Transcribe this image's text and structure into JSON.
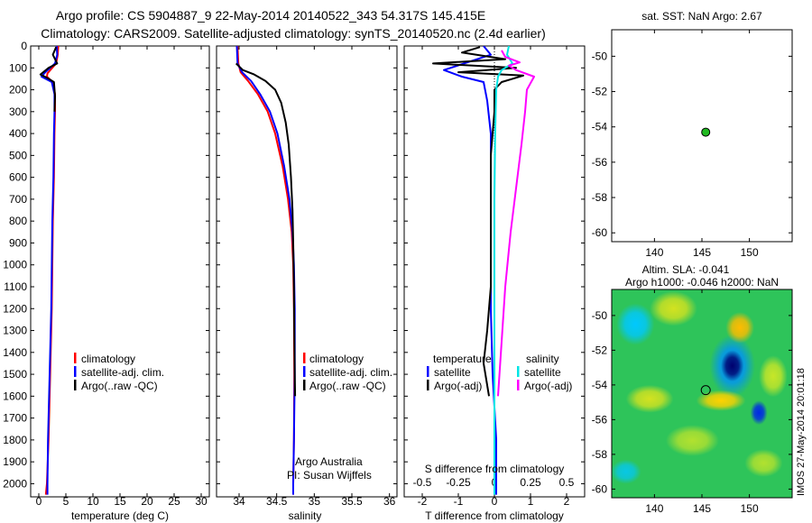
{
  "header": {
    "title_line1": "Argo profile: CS 5904887_9 22-May-2014 20140522_343 54.317S 145.415E",
    "title_line2": "Climatology: CARS2009. Satellite-adjusted climatology: synTS_20140520.nc (2.4d earlier)"
  },
  "colors": {
    "climatology": "#ff0000",
    "satellite": "#0000ff",
    "argo": "#000000",
    "t_satellite": "#0000ff",
    "s_satellite": "#00e5e5",
    "s_argo": "#ff00ff",
    "float_marker": "#22bb22"
  },
  "chart_data": [
    {
      "type": "line",
      "name": "temperature-profile",
      "xlabel": "temperature (deg C)",
      "ylabel": "",
      "xlim": [
        -1.5,
        31.5
      ],
      "ylim": [
        2060,
        0
      ],
      "xticks": [
        "0",
        "5",
        "10",
        "15",
        "20",
        "25",
        "30"
      ],
      "yticks": [
        "0",
        "100",
        "200",
        "300",
        "400",
        "500",
        "600",
        "700",
        "800",
        "900",
        "1000",
        "1100",
        "1200",
        "1300",
        "1400",
        "1500",
        "1600",
        "1700",
        "1800",
        "1900",
        "2000"
      ],
      "legend": [
        "climatology",
        "satellite-adj. clim.",
        "Argo(..raw -QC)"
      ],
      "series": [
        {
          "name": "climatology",
          "color_key": "climatology",
          "points": [
            [
              3.6,
              0
            ],
            [
              3.5,
              40
            ],
            [
              3.2,
              80
            ],
            [
              1.6,
              125
            ],
            [
              1.5,
              140
            ],
            [
              2.6,
              165
            ],
            [
              3.0,
              220
            ],
            [
              3.0,
              300
            ],
            [
              2.9,
              400
            ],
            [
              2.8,
              600
            ],
            [
              2.6,
              800
            ],
            [
              2.5,
              1000
            ],
            [
              2.4,
              1200
            ],
            [
              2.2,
              1400
            ],
            [
              2.0,
              1600
            ],
            [
              1.8,
              1800
            ],
            [
              1.5,
              2000
            ],
            [
              1.3,
              2050
            ]
          ]
        },
        {
          "name": "satellite-adj. clim.",
          "color_key": "satellite",
          "points": [
            [
              3.3,
              0
            ],
            [
              3.4,
              40
            ],
            [
              3.0,
              80
            ],
            [
              1.2,
              120
            ],
            [
              0.5,
              140
            ],
            [
              2.4,
              165
            ],
            [
              2.9,
              220
            ],
            [
              2.9,
              300
            ],
            [
              2.8,
              400
            ],
            [
              2.7,
              600
            ],
            [
              2.5,
              800
            ],
            [
              2.4,
              1000
            ],
            [
              2.3,
              1200
            ],
            [
              2.1,
              1400
            ],
            [
              1.9,
              1600
            ],
            [
              1.7,
              1800
            ],
            [
              1.6,
              2000
            ],
            [
              1.6,
              2050
            ]
          ]
        },
        {
          "name": "Argo(..raw -QC)",
          "color_key": "argo",
          "points": [
            [
              3.2,
              5
            ],
            [
              2.6,
              40
            ],
            [
              3.4,
              80
            ],
            [
              1.8,
              100
            ],
            [
              0.3,
              130
            ],
            [
              1.5,
              145
            ],
            [
              2.8,
              165
            ],
            [
              3.0,
              230
            ],
            [
              2.9,
              300
            ]
          ]
        }
      ]
    },
    {
      "type": "line",
      "name": "salinity-profile",
      "xlabel": "salinity",
      "xlim": [
        33.7,
        36.1
      ],
      "ylim": [
        2060,
        0
      ],
      "xticks": [
        "34",
        "34.5",
        "35",
        "35.5",
        "36"
      ],
      "legend": [
        "climatology",
        "satellite-adj. clim.",
        "Argo(..raw -QC)"
      ],
      "annotation": [
        "Argo Australia",
        "PI: Susan Wijffels"
      ],
      "series": [
        {
          "name": "climatology",
          "color_key": "climatology",
          "points": [
            [
              33.98,
              0
            ],
            [
              33.99,
              80
            ],
            [
              34.02,
              120
            ],
            [
              34.12,
              160
            ],
            [
              34.25,
              220
            ],
            [
              34.38,
              300
            ],
            [
              34.48,
              400
            ],
            [
              34.58,
              550
            ],
            [
              34.65,
              700
            ],
            [
              34.7,
              850
            ],
            [
              34.72,
              1000
            ],
            [
              34.73,
              1200
            ],
            [
              34.735,
              1500
            ],
            [
              34.73,
              1800
            ],
            [
              34.72,
              2000
            ],
            [
              34.72,
              2050
            ]
          ]
        },
        {
          "name": "satellite-adj. clim.",
          "color_key": "satellite",
          "points": [
            [
              33.97,
              0
            ],
            [
              33.98,
              80
            ],
            [
              34.04,
              120
            ],
            [
              34.16,
              160
            ],
            [
              34.28,
              220
            ],
            [
              34.41,
              300
            ],
            [
              34.51,
              400
            ],
            [
              34.6,
              550
            ],
            [
              34.67,
              700
            ],
            [
              34.71,
              850
            ],
            [
              34.73,
              1000
            ],
            [
              34.74,
              1200
            ],
            [
              34.74,
              1500
            ],
            [
              34.73,
              1800
            ],
            [
              34.72,
              2000
            ],
            [
              34.72,
              2050
            ]
          ]
        },
        {
          "name": "Argo(..raw -QC)",
          "color_key": "argo",
          "points": [
            [
              33.96,
              80
            ],
            [
              34.05,
              110
            ],
            [
              34.2,
              130
            ],
            [
              34.35,
              160
            ],
            [
              34.48,
              200
            ],
            [
              34.56,
              260
            ],
            [
              34.62,
              350
            ],
            [
              34.66,
              450
            ],
            [
              34.69,
              600
            ],
            [
              34.71,
              750
            ],
            [
              34.72,
              900
            ],
            [
              34.73,
              1100
            ],
            [
              34.735,
              1300
            ],
            [
              34.74,
              1500
            ],
            [
              34.745,
              1600
            ]
          ]
        }
      ]
    },
    {
      "type": "line",
      "name": "difference-profile",
      "xlabel": "T difference from climatology",
      "top_label": "S difference from climatology",
      "xlim": [
        -2.5,
        2.5
      ],
      "ylim": [
        2060,
        0
      ],
      "t_xticks": [
        [
          "-2",
          -2
        ],
        [
          "-1",
          -1
        ],
        [
          "0",
          0
        ],
        [
          "1",
          1
        ],
        [
          "2",
          2
        ]
      ],
      "s_xticks": [
        [
          "-0.5",
          -0.5
        ],
        [
          "-0.25",
          -0.25
        ],
        [
          "0",
          0
        ],
        [
          "0.25",
          0.25
        ],
        [
          "0.5",
          0.5
        ]
      ],
      "s_scale": 0.25,
      "legend_left_title": "temperature",
      "legend_right_title": "salinity",
      "legend_left": [
        "satellite",
        "Argo(-adj)"
      ],
      "legend_right": [
        "satellite",
        "Argo(-adj)"
      ],
      "series": [
        {
          "name": "T satellite",
          "color_key": "t_satellite",
          "points": [
            [
              -0.3,
              0
            ],
            [
              -0.1,
              40
            ],
            [
              -1.4,
              110
            ],
            [
              -0.9,
              140
            ],
            [
              -0.3,
              165
            ],
            [
              -0.2,
              250
            ],
            [
              -0.1,
              400
            ],
            [
              -0.1,
              600
            ],
            [
              -0.1,
              800
            ],
            [
              -0.1,
              1000
            ],
            [
              -0.1,
              1200
            ],
            [
              -0.05,
              1500
            ],
            [
              0.05,
              1800
            ],
            [
              0.05,
              2000
            ],
            [
              0.05,
              2050
            ]
          ]
        },
        {
          "name": "T Argo(-adj)",
          "color_key": "argo",
          "points": [
            [
              -0.4,
              5
            ],
            [
              -0.9,
              30
            ],
            [
              0.3,
              60
            ],
            [
              -1.7,
              80
            ],
            [
              0.6,
              100
            ],
            [
              -1.0,
              120
            ],
            [
              0.8,
              135
            ],
            [
              0.5,
              150
            ],
            [
              0.2,
              165
            ],
            [
              0.0,
              200
            ],
            [
              0.0,
              300
            ],
            [
              -0.1,
              500
            ],
            [
              -0.1,
              700
            ],
            [
              -0.1,
              900
            ],
            [
              -0.1,
              1100
            ],
            [
              -0.2,
              1300
            ],
            [
              -0.3,
              1450
            ],
            [
              -0.2,
              1550
            ],
            [
              -0.15,
              1600
            ]
          ]
        },
        {
          "name": "S satellite",
          "color_key": "s_satellite",
          "points": [
            [
              0.4,
              0
            ],
            [
              0.35,
              40
            ],
            [
              0.5,
              80
            ],
            [
              0.2,
              110
            ],
            [
              0.1,
              140
            ],
            [
              0.05,
              200
            ],
            [
              0.02,
              400
            ],
            [
              0.0,
              700
            ],
            [
              0.0,
              1000
            ],
            [
              0.0,
              1400
            ],
            [
              0.0,
              1800
            ],
            [
              0.0,
              2050
            ]
          ]
        },
        {
          "name": "S Argo(-adj)",
          "color_key": "s_argo",
          "points": [
            [
              0.2,
              20
            ],
            [
              0.3,
              50
            ],
            [
              0.7,
              75
            ],
            [
              0.4,
              90
            ],
            [
              0.6,
              110
            ],
            [
              1.1,
              140
            ],
            [
              0.9,
              200
            ],
            [
              0.85,
              300
            ],
            [
              0.75,
              450
            ],
            [
              0.6,
              650
            ],
            [
              0.45,
              850
            ],
            [
              0.3,
              1100
            ],
            [
              0.2,
              1350
            ],
            [
              0.1,
              1600
            ]
          ]
        }
      ]
    },
    {
      "type": "scatter",
      "name": "sst-location-map",
      "title": "sat. SST: NaN Argo: 2.67",
      "xlim": [
        135.5,
        154.5
      ],
      "ylim": [
        -60.5,
        -48.5
      ],
      "xticks": [
        [
          "140",
          140
        ],
        [
          "145",
          145
        ],
        [
          "150",
          150
        ]
      ],
      "yticks": [
        [
          "-50",
          -50
        ],
        [
          "-52",
          -52
        ],
        [
          "-54",
          -54
        ],
        [
          "-56",
          -56
        ],
        [
          "-58",
          -58
        ],
        [
          "-60",
          -60
        ]
      ],
      "points": [
        {
          "x": 145.4,
          "y": -54.3,
          "label": "Argo float"
        }
      ]
    },
    {
      "type": "heatmap",
      "name": "altimetry-sla-map",
      "title_line1": "Altim. SLA: -0.041",
      "title_line2": "Argo h1000: -0.046 h2000: NaN",
      "xlim": [
        135.5,
        154.5
      ],
      "ylim": [
        -60.5,
        -48.5
      ],
      "xticks": [
        [
          "140",
          140
        ],
        [
          "145",
          145
        ],
        [
          "150",
          150
        ]
      ],
      "yticks": [
        [
          "-50",
          -50
        ],
        [
          "-52",
          -52
        ],
        [
          "-54",
          -54
        ],
        [
          "-56",
          -56
        ],
        [
          "-58",
          -58
        ],
        [
          "-60",
          -60
        ]
      ],
      "background_value": 0.0,
      "features": [
        {
          "x": 148.2,
          "y": -52.9,
          "rx": 1.2,
          "ry": 0.9,
          "value": -1.0
        },
        {
          "x": 148.2,
          "y": -52.9,
          "rx": 2.4,
          "ry": 1.8,
          "value": -0.4
        },
        {
          "x": 149.0,
          "y": -50.7,
          "rx": 1.5,
          "ry": 0.9,
          "value": 0.7
        },
        {
          "x": 147.0,
          "y": -54.9,
          "rx": 2.6,
          "ry": 0.6,
          "value": 0.6
        },
        {
          "x": 142.0,
          "y": -49.6,
          "rx": 2.5,
          "ry": 1.0,
          "value": 0.4
        },
        {
          "x": 139.5,
          "y": -54.8,
          "rx": 2.5,
          "ry": 0.8,
          "value": 0.4
        },
        {
          "x": 138.0,
          "y": -50.5,
          "rx": 2.0,
          "ry": 1.2,
          "value": -0.3
        },
        {
          "x": 144.0,
          "y": -57.2,
          "rx": 2.8,
          "ry": 0.9,
          "value": 0.3
        },
        {
          "x": 151.0,
          "y": -55.6,
          "rx": 0.9,
          "ry": 0.7,
          "value": -0.6
        },
        {
          "x": 152.5,
          "y": -53.5,
          "rx": 1.5,
          "ry": 1.2,
          "value": 0.35
        },
        {
          "x": 151.5,
          "y": -58.5,
          "rx": 2.0,
          "ry": 0.8,
          "value": 0.3
        },
        {
          "x": 137.0,
          "y": -59.0,
          "rx": 1.6,
          "ry": 0.7,
          "value": -0.25
        }
      ],
      "argo_marker": {
        "x": 145.4,
        "y": -54.3
      }
    }
  ],
  "side_label": "IMOS 27-May-2014 20:01:18"
}
